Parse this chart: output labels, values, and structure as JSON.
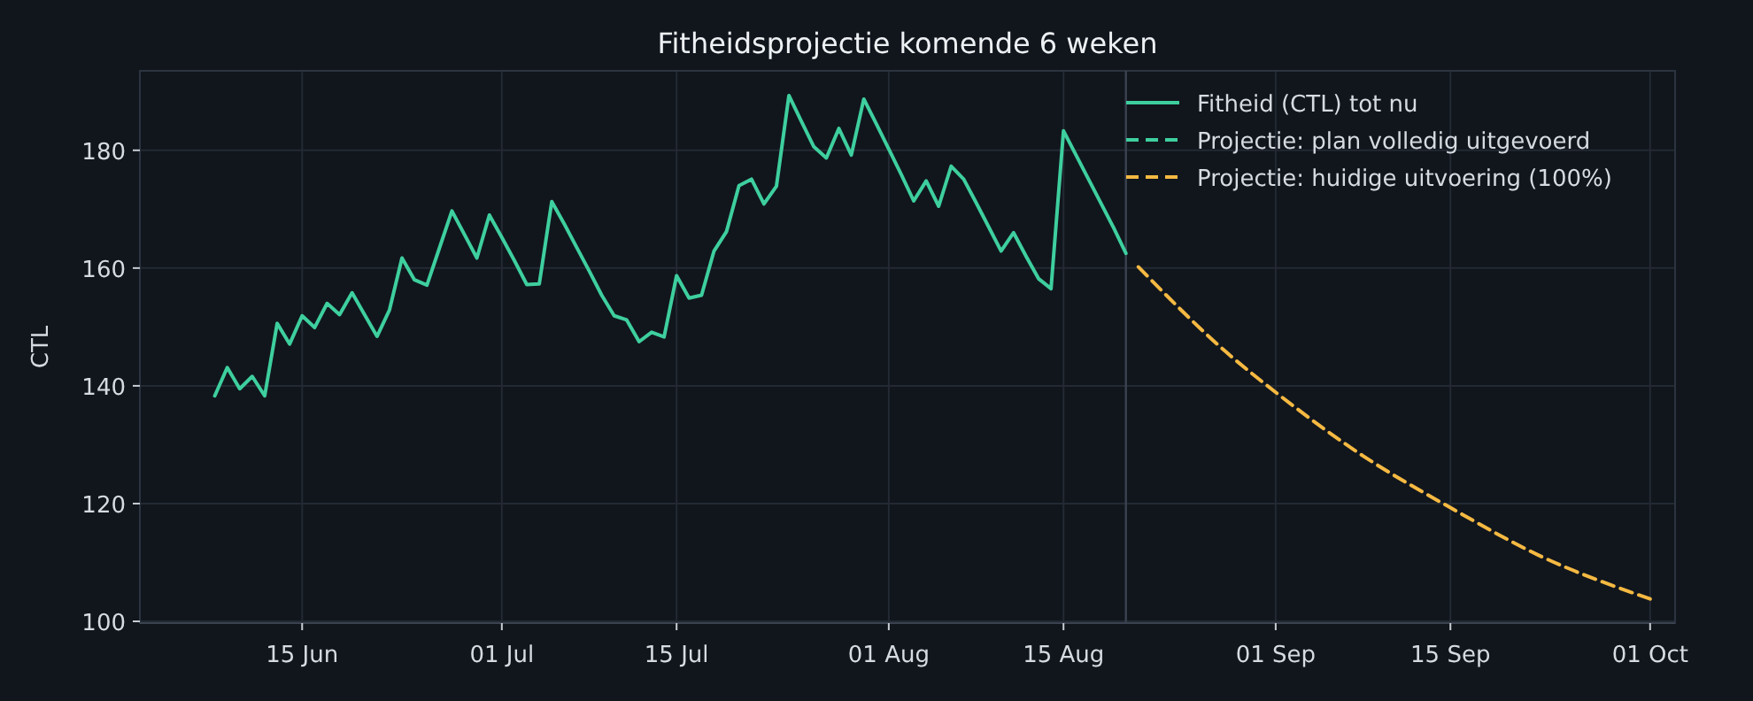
{
  "chart_data": {
    "type": "line",
    "title": "Fitheidsprojectie komende 6 weken",
    "ylabel": "CTL",
    "xlim": [
      "--06-02",
      "--10-03"
    ],
    "xticks": [
      {
        "value": "--06-15",
        "label": "15 Jun"
      },
      {
        "value": "--07-01",
        "label": "01 Jul"
      },
      {
        "value": "--07-15",
        "label": "15 Jul"
      },
      {
        "value": "--08-01",
        "label": "01 Aug"
      },
      {
        "value": "--08-15",
        "label": "15 Aug"
      },
      {
        "value": "--09-01",
        "label": "01 Sep"
      },
      {
        "value": "--09-15",
        "label": "15 Sep"
      },
      {
        "value": "--10-01",
        "label": "01 Oct"
      }
    ],
    "ylim": [
      99.7,
      193.5
    ],
    "yticks": [
      100,
      120,
      140,
      160,
      180
    ],
    "grid": true,
    "legend": "top right",
    "ref_lines": [
      {
        "axis": "x",
        "value": "--08-20",
        "color": "#3a4250"
      }
    ],
    "series": [
      {
        "name": "Fitheid (CTL) tot nu",
        "color": "#3ecf9e",
        "line_style": "solid",
        "x": [
          "--06-08",
          "--06-09",
          "--06-10",
          "--06-11",
          "--06-12",
          "--06-13",
          "--06-14",
          "--06-15",
          "--06-16",
          "--06-17",
          "--06-18",
          "--06-19",
          "--06-20",
          "--06-21",
          "--06-22",
          "--06-23",
          "--06-24",
          "--06-25",
          "--06-26",
          "--06-27",
          "--06-28",
          "--06-29",
          "--06-30",
          "--07-01",
          "--07-02",
          "--07-03",
          "--07-04",
          "--07-05",
          "--07-06",
          "--07-07",
          "--07-08",
          "--07-09",
          "--07-10",
          "--07-11",
          "--07-12",
          "--07-13",
          "--07-14",
          "--07-15",
          "--07-16",
          "--07-17",
          "--07-18",
          "--07-19",
          "--07-20",
          "--07-21",
          "--07-22",
          "--07-23",
          "--07-24",
          "--07-25",
          "--07-26",
          "--07-27",
          "--07-28",
          "--07-29",
          "--07-30",
          "--07-31",
          "--08-01",
          "--08-02",
          "--08-03",
          "--08-04",
          "--08-05",
          "--08-06",
          "--08-07",
          "--08-08",
          "--08-09",
          "--08-10",
          "--08-11",
          "--08-12",
          "--08-13",
          "--08-14",
          "--08-15",
          "--08-16",
          "--08-17",
          "--08-18",
          "--08-19",
          "--08-20"
        ],
        "values": [
          138.3,
          143.1,
          139.5,
          141.6,
          138.3,
          150.6,
          147.1,
          151.9,
          149.9,
          154.0,
          152.1,
          155.8,
          152.1,
          148.4,
          152.9,
          161.7,
          158.0,
          157.1,
          163.4,
          169.7,
          165.7,
          161.7,
          169.0,
          165.2,
          161.3,
          157.2,
          157.3,
          171.3,
          167.5,
          163.5,
          159.5,
          155.4,
          151.9,
          151.2,
          147.5,
          149.1,
          148.3,
          158.7,
          154.9,
          155.4,
          162.9,
          166.2,
          174.0,
          175.1,
          170.9,
          173.9,
          189.3,
          184.9,
          180.6,
          178.7,
          183.7,
          179.2,
          188.7,
          184.5,
          180.2,
          175.9,
          171.4,
          174.8,
          170.5,
          177.3,
          175.1,
          171.1,
          167.0,
          162.9,
          166.0,
          162.0,
          158.2,
          156.5,
          183.3,
          179.2,
          175.1,
          171.0,
          166.9,
          162.5
        ]
      },
      {
        "name": "Projectie: plan volledig uitgevoerd",
        "color": "#3ecf9e",
        "line_style": "dashed"
      },
      {
        "name": "Projectie: huidige uitvoering (100%)",
        "color": "#f5b942",
        "line_style": "dashed",
        "x": [
          "--08-21",
          "--08-28",
          "--09-01",
          "--09-08",
          "--09-15",
          "--09-22",
          "--10-01"
        ],
        "values": [
          160.2,
          145.8,
          138.9,
          128.1,
          119.3,
          111.3,
          103.8
        ]
      }
    ]
  }
}
